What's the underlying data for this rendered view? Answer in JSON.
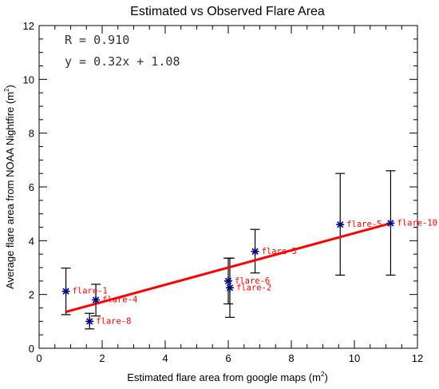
{
  "chart_data": {
    "type": "scatter",
    "title": "Estimated vs Observed Flare Area",
    "xlabel": "Estimated flare area from google maps (m",
    "xlabel_sup": "2",
    "xlabel_close": ")",
    "ylabel": "Average flare area from NOAA Nightfire (m",
    "ylabel_sup": "2",
    "ylabel_close": ")",
    "xlim": [
      0,
      12
    ],
    "ylim": [
      0,
      12
    ],
    "xticks": [
      0,
      2,
      4,
      6,
      8,
      10,
      12
    ],
    "yticks": [
      0,
      2,
      4,
      6,
      8,
      10,
      12
    ],
    "xtick_labels": [
      "0",
      "2",
      "4",
      "6",
      "8",
      "10",
      "12"
    ],
    "ytick_labels": [
      "0",
      "2",
      "4",
      "6",
      "8",
      "10",
      "12"
    ],
    "annotations": [
      "R = 0.910",
      "y = 0.32x + 1.08"
    ],
    "fit": {
      "slope": 0.32,
      "intercept": 1.08,
      "x_range": [
        0.85,
        11.15
      ],
      "color": "#ff0000"
    },
    "marker_color": "#000080",
    "label_color": "#ff0000",
    "points": [
      {
        "label": "flare-1",
        "x": 0.85,
        "y": 2.12,
        "y_low": 1.25,
        "y_high": 2.98
      },
      {
        "label": "flare-4",
        "x": 1.8,
        "y": 1.8,
        "y_low": 1.2,
        "y_high": 2.38
      },
      {
        "label": "flare-8",
        "x": 1.6,
        "y": 1.0,
        "y_low": 0.72,
        "y_high": 1.3
      },
      {
        "label": "flare-6",
        "x": 6.0,
        "y": 2.5,
        "y_low": 1.65,
        "y_high": 3.35
      },
      {
        "label": "flare-2",
        "x": 6.05,
        "y": 2.25,
        "y_low": 1.15,
        "y_high": 3.35
      },
      {
        "label": "flare-3",
        "x": 6.85,
        "y": 3.6,
        "y_low": 2.8,
        "y_high": 4.42
      },
      {
        "label": "flare-5",
        "x": 9.55,
        "y": 4.6,
        "y_low": 2.72,
        "y_high": 6.5
      },
      {
        "label": "flare-10",
        "x": 11.15,
        "y": 4.65,
        "y_low": 2.72,
        "y_high": 6.6
      }
    ]
  }
}
